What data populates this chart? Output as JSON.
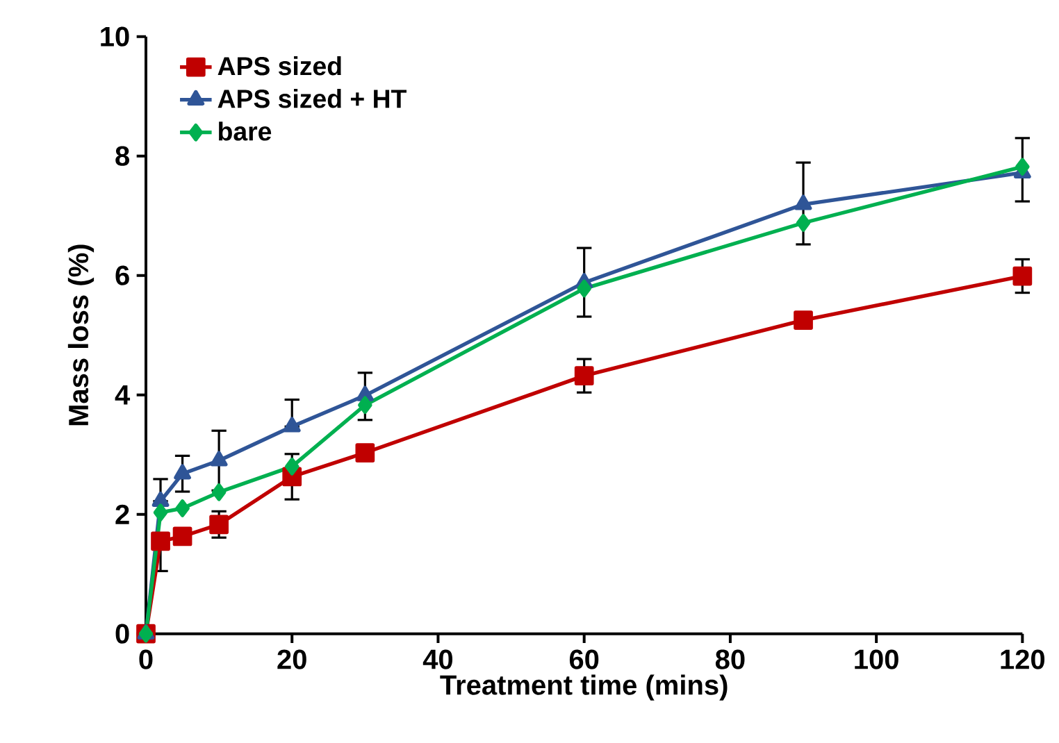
{
  "chart_data": {
    "type": "line",
    "xlabel": "Treatment time (mins)",
    "ylabel": "Mass loss (%)",
    "xlim": [
      0,
      120
    ],
    "xticks": [
      0,
      20,
      40,
      60,
      80,
      100,
      120
    ],
    "ylim": [
      0,
      10
    ],
    "yticks": [
      0,
      2,
      4,
      6,
      8,
      10
    ],
    "x": [
      0,
      2,
      5,
      10,
      20,
      30,
      60,
      90,
      120
    ],
    "legend": "top left",
    "grid": false,
    "series": [
      {
        "name": "APS sized",
        "color": "#c00000",
        "marker": "square",
        "values": [
          0,
          1.55,
          1.63,
          1.83,
          2.63,
          3.03,
          4.32,
          5.25,
          5.99
        ],
        "errors": [
          null,
          [
            1.05,
            1.55
          ],
          null,
          0.22,
          0.38,
          null,
          0.28,
          null,
          0.28
        ]
      },
      {
        "name": "APS sized + HT",
        "color": "#2f5597",
        "marker": "triangle",
        "values": [
          0,
          2.22,
          2.68,
          2.9,
          3.47,
          3.99,
          5.88,
          7.19,
          7.72
        ],
        "errors": [
          null,
          [
            2.22,
            2.59
          ],
          0.3,
          0.5,
          [
            3.47,
            3.92
          ],
          [
            3.58,
            4.37
          ],
          [
            5.31,
            6.46
          ],
          [
            6.52,
            7.89
          ],
          [
            7.24,
            8.3
          ]
        ]
      },
      {
        "name": "bare",
        "color": "#00b050",
        "marker": "diamond",
        "values": [
          0,
          2.03,
          2.1,
          2.37,
          2.8,
          3.83,
          5.78,
          6.88,
          7.82
        ],
        "errors": [
          null,
          null,
          null,
          null,
          null,
          null,
          null,
          null,
          null
        ]
      }
    ]
  }
}
